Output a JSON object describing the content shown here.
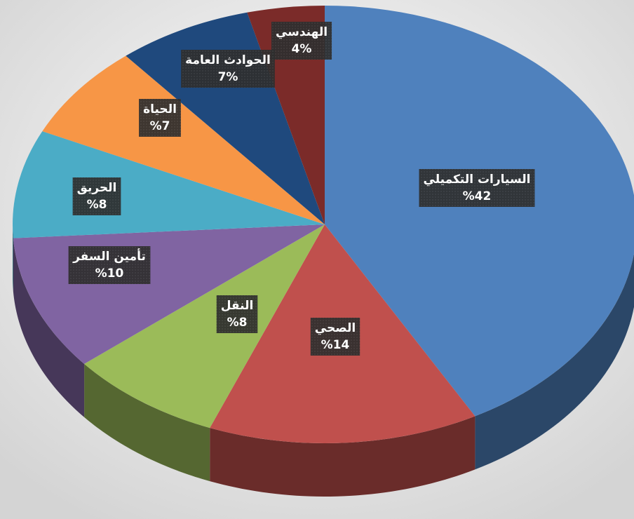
{
  "chart_data": {
    "type": "pie",
    "categories": [
      "السيارات التكميلي",
      "الصحي",
      "النقل",
      "تأمين السفر",
      "الحريق",
      "الحياة",
      "الحوادث العامة",
      "الهندسي"
    ],
    "values": [
      42,
      14,
      8,
      10,
      8,
      7,
      7,
      4
    ],
    "value_labels": [
      "%42",
      "%14",
      "%8",
      "%10",
      "%8",
      "%7",
      "7%",
      "4%"
    ],
    "colors": [
      "#4f81bd",
      "#c0504d",
      "#9bbb59",
      "#8064a2",
      "#4bacc6",
      "#f79646",
      "#1f497d",
      "#7b2b29"
    ]
  }
}
